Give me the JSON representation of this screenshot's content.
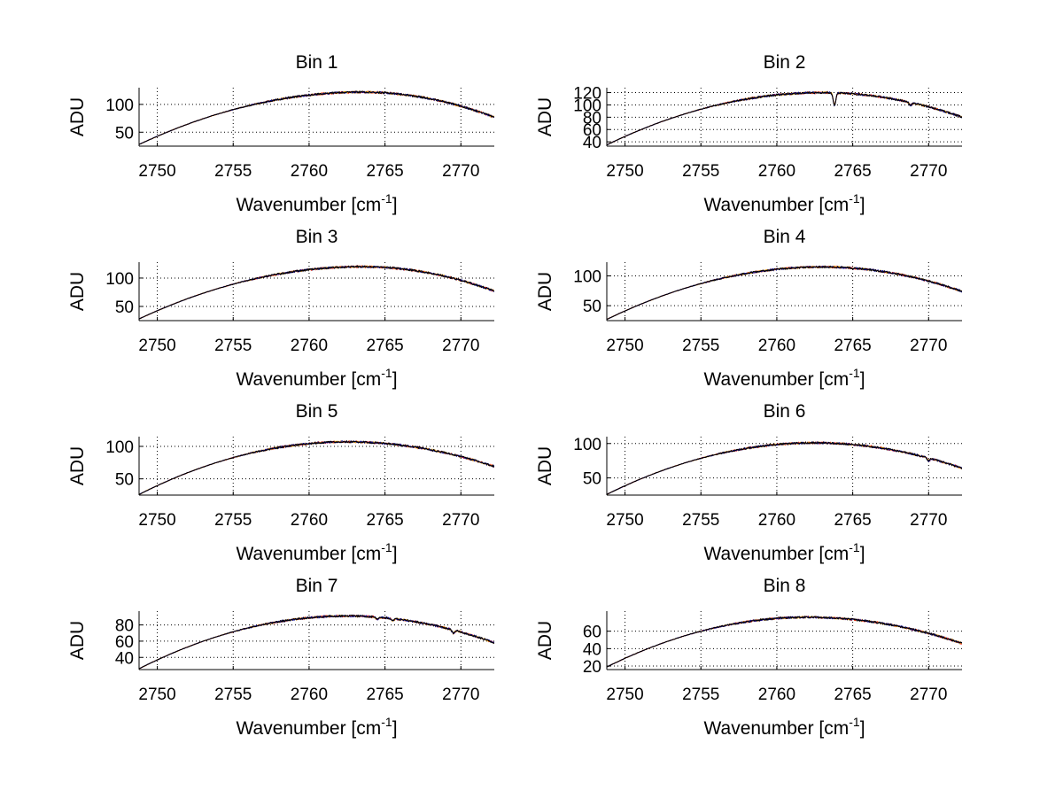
{
  "figure": {
    "background": "#ffffff"
  },
  "series_colors": [
    "#ff0000",
    "#e6a000",
    "#00008b",
    "#000000"
  ],
  "chart_data": [
    {
      "type": "line",
      "title": "Bin 1",
      "xlabel_main": "Wavenumber [cm",
      "xlabel_sup": "-1",
      "xlabel_close": "]",
      "ylabel": "ADU",
      "xlim": [
        2748.8,
        2772.2
      ],
      "ylim": [
        25,
        130
      ],
      "xticks": [
        2750,
        2755,
        2760,
        2765,
        2770
      ],
      "yticks": [
        50,
        100
      ],
      "profile": {
        "start": 28,
        "peak_x": 2763.5,
        "peak": 122,
        "end": 77,
        "dips": []
      }
    },
    {
      "type": "line",
      "title": "Bin 2",
      "xlabel_main": "Wavenumber [cm",
      "xlabel_sup": "-1",
      "xlabel_close": "]",
      "ylabel": "ADU",
      "xlim": [
        2748.8,
        2772.2
      ],
      "ylim": [
        33,
        128
      ],
      "xticks": [
        2750,
        2755,
        2760,
        2765,
        2770
      ],
      "yticks": [
        40,
        60,
        80,
        100,
        120
      ],
      "profile": {
        "start": 35,
        "peak_x": 2763.0,
        "peak": 120,
        "end": 80,
        "dips": [
          [
            2763.8,
            20
          ],
          [
            2768.8,
            5
          ]
        ]
      }
    },
    {
      "type": "line",
      "title": "Bin 3",
      "xlabel_main": "Wavenumber [cm",
      "xlabel_sup": "-1",
      "xlabel_close": "]",
      "ylabel": "ADU",
      "xlim": [
        2748.8,
        2772.2
      ],
      "ylim": [
        25,
        128
      ],
      "xticks": [
        2750,
        2755,
        2760,
        2765,
        2770
      ],
      "yticks": [
        50,
        100
      ],
      "profile": {
        "start": 28,
        "peak_x": 2763.5,
        "peak": 120,
        "end": 77,
        "dips": []
      }
    },
    {
      "type": "line",
      "title": "Bin 4",
      "xlabel_main": "Wavenumber [cm",
      "xlabel_sup": "-1",
      "xlabel_close": "]",
      "ylabel": "ADU",
      "xlim": [
        2748.8,
        2772.2
      ],
      "ylim": [
        25,
        123
      ],
      "xticks": [
        2750,
        2755,
        2760,
        2765,
        2770
      ],
      "yticks": [
        50,
        100
      ],
      "profile": {
        "start": 27,
        "peak_x": 2763.0,
        "peak": 115,
        "end": 74,
        "dips": []
      }
    },
    {
      "type": "line",
      "title": "Bin 5",
      "xlabel_main": "Wavenumber [cm",
      "xlabel_sup": "-1",
      "xlabel_close": "]",
      "ylabel": "ADU",
      "xlim": [
        2748.8,
        2772.2
      ],
      "ylim": [
        25,
        115
      ],
      "xticks": [
        2750,
        2755,
        2760,
        2765,
        2770
      ],
      "yticks": [
        50,
        100
      ],
      "profile": {
        "start": 26,
        "peak_x": 2762.5,
        "peak": 107,
        "end": 69,
        "dips": []
      }
    },
    {
      "type": "line",
      "title": "Bin 6",
      "xlabel_main": "Wavenumber [cm",
      "xlabel_sup": "-1",
      "xlabel_close": "]",
      "ylabel": "ADU",
      "xlim": [
        2748.8,
        2772.2
      ],
      "ylim": [
        25,
        110
      ],
      "xticks": [
        2750,
        2755,
        2760,
        2765,
        2770
      ],
      "yticks": [
        50,
        100
      ],
      "profile": {
        "start": 26,
        "peak_x": 2762.5,
        "peak": 101,
        "end": 64,
        "dips": [
          [
            2770.0,
            4
          ]
        ]
      }
    },
    {
      "type": "line",
      "title": "Bin 7",
      "xlabel_main": "Wavenumber [cm",
      "xlabel_sup": "-1",
      "xlabel_close": "]",
      "ylabel": "ADU",
      "xlim": [
        2748.8,
        2772.2
      ],
      "ylim": [
        25,
        97
      ],
      "xticks": [
        2750,
        2755,
        2760,
        2765,
        2770
      ],
      "yticks": [
        40,
        60,
        80
      ],
      "profile": {
        "start": 26,
        "peak_x": 2762.5,
        "peak": 91,
        "end": 58,
        "dips": [
          [
            2764.5,
            3
          ],
          [
            2765.5,
            3
          ],
          [
            2769.5,
            4
          ]
        ]
      }
    },
    {
      "type": "line",
      "title": "Bin 8",
      "xlabel_main": "Wavenumber [cm",
      "xlabel_sup": "-1",
      "xlabel_close": "]",
      "ylabel": "ADU",
      "xlim": [
        2748.8,
        2772.2
      ],
      "ylim": [
        16,
        83
      ],
      "xticks": [
        2750,
        2755,
        2760,
        2765,
        2770
      ],
      "yticks": [
        20,
        40,
        60
      ],
      "profile": {
        "start": 19,
        "peak_x": 2762.0,
        "peak": 76,
        "end": 46,
        "dips": []
      }
    }
  ]
}
